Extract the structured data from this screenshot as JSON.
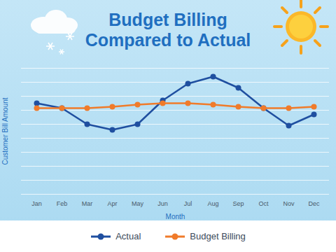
{
  "chart_data": {
    "type": "line",
    "title": "Budget Billing Compared to Actual",
    "x_label": "Month",
    "y_label": "Customer Bill Amount",
    "categories": [
      "Jan",
      "Feb",
      "Mar",
      "Apr",
      "May",
      "Jun",
      "Jul",
      "Aug",
      "Sep",
      "Oct",
      "Nov",
      "Dec"
    ],
    "series": [
      {
        "name": "Actual",
        "color": "#1f4fa0",
        "marker": "circle",
        "values": [
          6.5,
          6.15,
          5.0,
          4.6,
          5.0,
          6.7,
          7.9,
          8.4,
          7.6,
          6.15,
          4.9,
          5.7
        ]
      },
      {
        "name": "Budget Billing",
        "color": "#f07b2a",
        "marker": "circle",
        "values": [
          6.15,
          6.15,
          6.15,
          6.25,
          6.4,
          6.5,
          6.5,
          6.4,
          6.25,
          6.15,
          6.15,
          6.25
        ]
      }
    ],
    "ylim": [
      0,
      9
    ],
    "yticks": [
      0,
      1,
      2,
      3,
      4,
      5,
      6,
      7,
      8,
      9
    ],
    "grid": true,
    "tick_labels": "x",
    "legend": "bottom"
  }
}
